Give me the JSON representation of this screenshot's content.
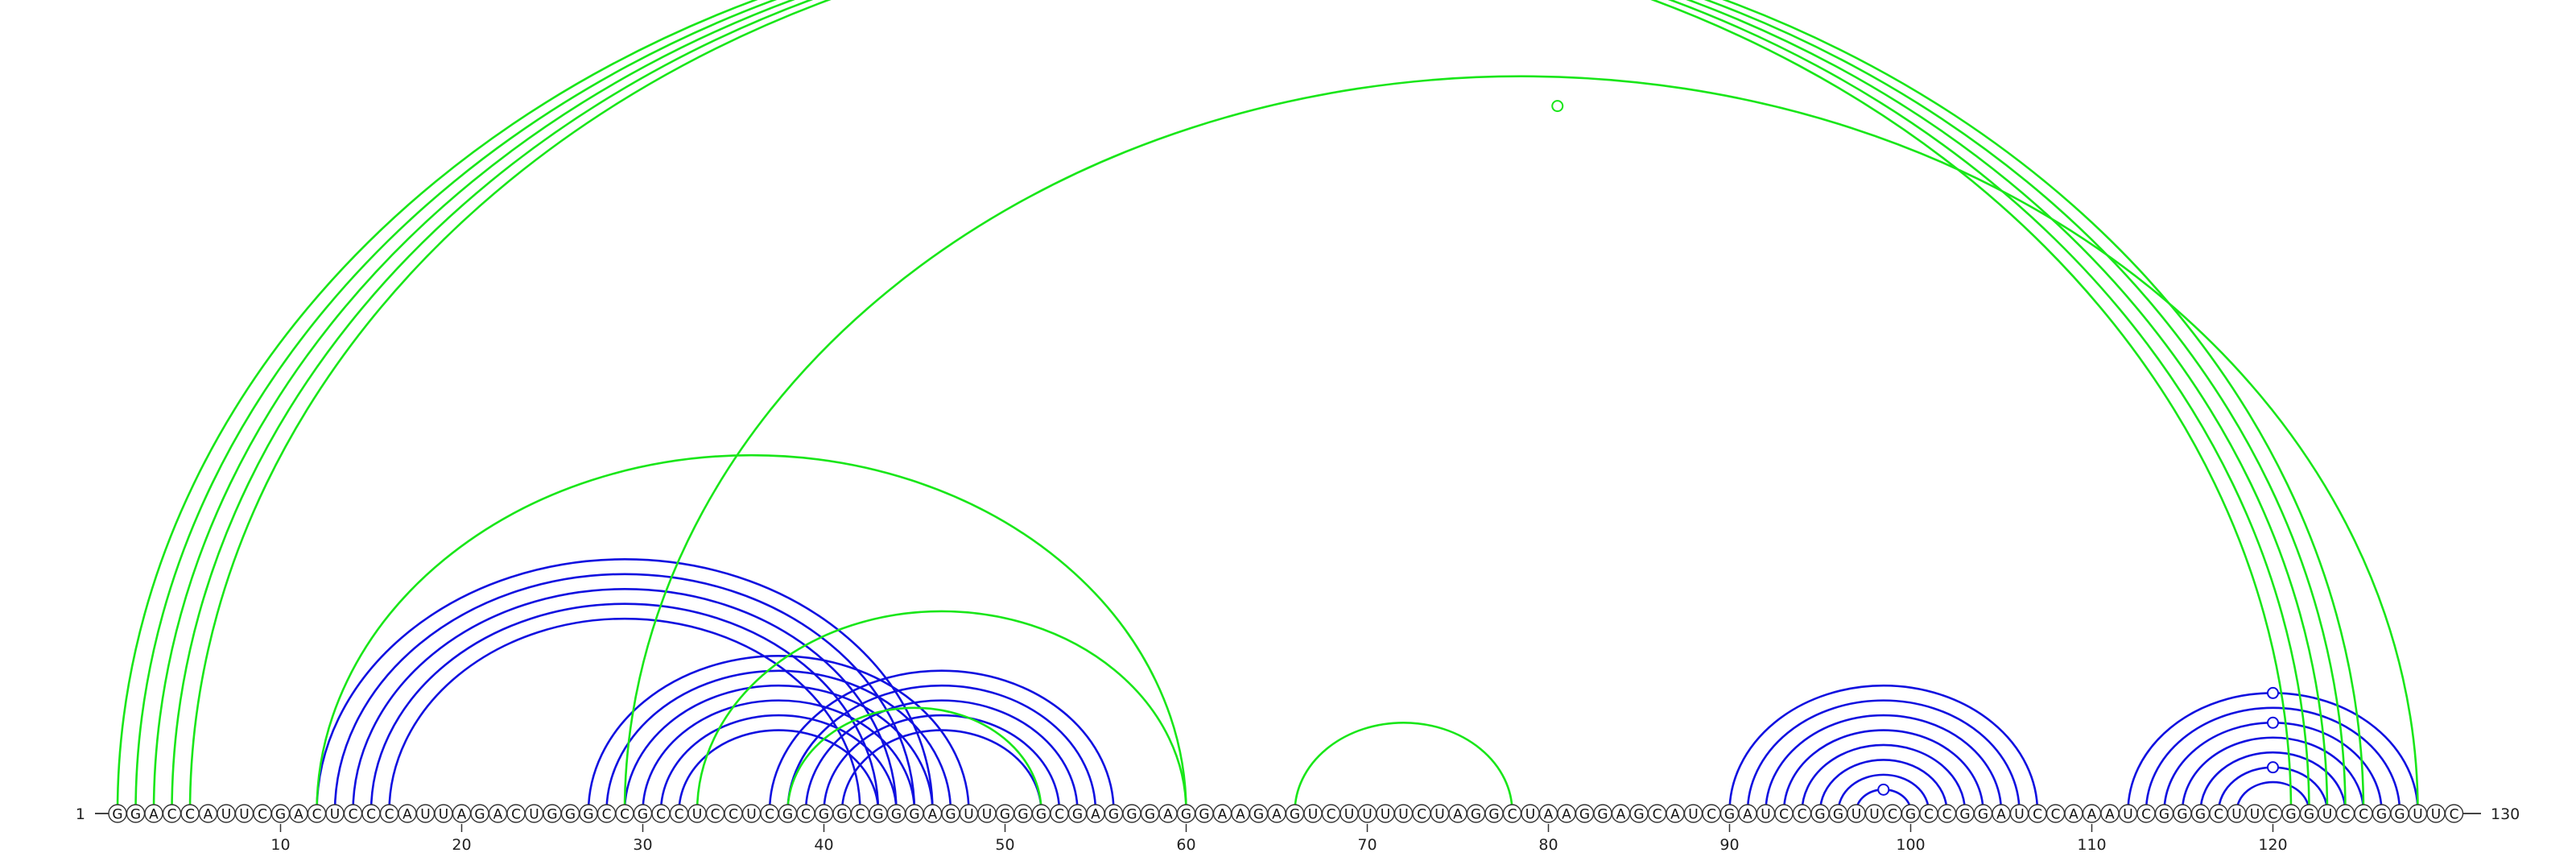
{
  "sequence": "GGACCAUUCGACUCCCAUUAGACUGGGCCGCCUCCUCGCGGCGGGAGUUGGGCGAGGGAGGAAGAGUCUUUUCUAGGCUAAGGAGCAUCGAUCCGGUUCGCCGGAUCCAAAUCGGGCUUCGGUCCGGUUC",
  "start_label": "1",
  "end_label": "130",
  "ticks": [
    "10",
    "20",
    "30",
    "40",
    "50",
    "60",
    "70",
    "80",
    "90",
    "100",
    "110",
    "120"
  ],
  "colors": {
    "blue_arcs": "#1010e0",
    "green_arcs": "#19e619",
    "nucleotide_outline": "#333333"
  },
  "arcs": {
    "blue": [
      [
        12,
        46
      ],
      [
        13,
        45
      ],
      [
        14,
        44
      ],
      [
        15,
        43
      ],
      [
        16,
        42
      ],
      [
        27,
        48
      ],
      [
        28,
        47
      ],
      [
        29,
        46
      ],
      [
        30,
        45
      ],
      [
        31,
        44
      ],
      [
        32,
        43
      ],
      [
        37,
        56
      ],
      [
        38,
        55
      ],
      [
        39,
        54
      ],
      [
        40,
        53
      ],
      [
        41,
        52
      ],
      [
        90,
        107
      ],
      [
        91,
        106
      ],
      [
        92,
        105
      ],
      [
        93,
        104
      ],
      [
        94,
        103
      ],
      [
        95,
        102
      ],
      [
        96,
        101
      ],
      [
        97,
        100
      ],
      [
        112,
        128
      ],
      [
        113,
        127
      ],
      [
        114,
        126
      ],
      [
        115,
        125
      ],
      [
        116,
        124
      ],
      [
        117,
        123
      ],
      [
        118,
        122
      ]
    ],
    "green": [
      [
        1,
        121
      ],
      [
        2,
        122
      ],
      [
        3,
        123
      ],
      [
        4,
        124
      ],
      [
        5,
        125
      ],
      [
        29,
        128
      ],
      [
        12,
        60
      ],
      [
        33,
        60
      ],
      [
        38,
        52
      ],
      [
        66,
        78
      ]
    ],
    "markers": [
      {
        "i": 33,
        "j": 128,
        "color": "green"
      },
      {
        "i": 97,
        "j": 100,
        "color": "blue"
      },
      {
        "i": 117,
        "j": 123,
        "color": "blue"
      },
      {
        "i": 114,
        "j": 126,
        "color": "blue"
      },
      {
        "i": 112,
        "j": 128,
        "color": "blue"
      }
    ]
  }
}
